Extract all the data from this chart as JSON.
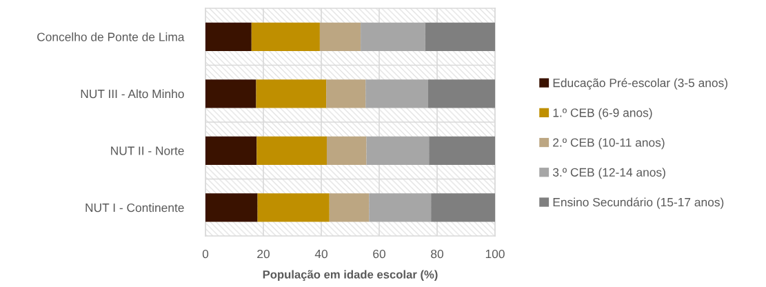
{
  "chart_data": {
    "type": "bar",
    "orientation": "horizontal",
    "stacked": true,
    "xlabel": "População em idade escolar (%)",
    "categories": [
      "Concelho de Ponte de Lima",
      "NUT III - Alto Minho",
      "NUT II - Norte",
      "NUT I - Continente"
    ],
    "series": [
      {
        "name": "Educação Pré-escolar (3-5 anos)",
        "color": "#3a1200",
        "values": [
          15.9,
          17.5,
          17.7,
          18.0
        ]
      },
      {
        "name": "1.º CEB (6-9 anos)",
        "color": "#bf8f00",
        "values": [
          23.6,
          24.2,
          24.2,
          24.8
        ]
      },
      {
        "name": "2.º CEB (10-11 anos)",
        "color": "#bca682",
        "values": [
          14.1,
          13.6,
          13.7,
          13.7
        ]
      },
      {
        "name": "3.º CEB (12-14 anos)",
        "color": "#a6a6a6",
        "values": [
          22.3,
          21.6,
          21.6,
          21.4
        ]
      },
      {
        "name": "Ensino Secundário (15-17 anos)",
        "color": "#7f7f7f",
        "values": [
          24.1,
          23.1,
          22.8,
          22.1
        ]
      }
    ],
    "xlim": [
      0,
      100
    ],
    "xticks": [
      0,
      20,
      40,
      60,
      80,
      100
    ],
    "grid": true,
    "legend": "right"
  }
}
